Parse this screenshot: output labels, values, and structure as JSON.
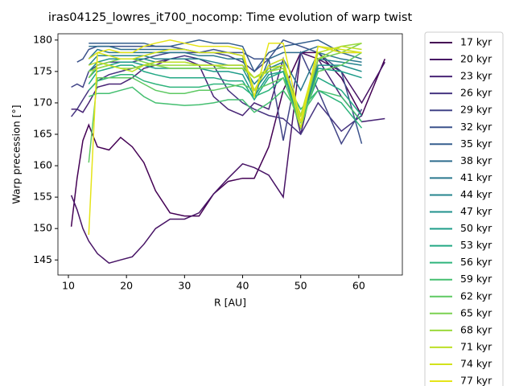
{
  "chart_data": {
    "type": "line",
    "title": "iras04125_lowres_it700_nocomp: Time evolution of warp twist",
    "x_label": "R [AU]",
    "y_label": "Warp precession [°]",
    "xlim": [
      8.2,
      67.5
    ],
    "ylim": [
      142.6,
      181.0
    ],
    "xticks": [
      10,
      20,
      30,
      40,
      50,
      60
    ],
    "yticks": [
      145,
      150,
      155,
      160,
      165,
      170,
      175,
      180
    ],
    "x": [
      10.5,
      11.5,
      12.5,
      13.5,
      15,
      17,
      19,
      21,
      23,
      25,
      27.5,
      30,
      32.5,
      35,
      37.5,
      40,
      42,
      44.5,
      47,
      50,
      53,
      57,
      60.5,
      64.5
    ],
    "series": [
      {
        "name": "17 kyr",
        "color": "#440154",
        "values": [
          150.3,
          158,
          164,
          166.5,
          163,
          162.5,
          164.5,
          163,
          160.5,
          156,
          152.5,
          152,
          152,
          155.5,
          157.5,
          158,
          158,
          163,
          172,
          178,
          178,
          174,
          168,
          177
        ]
      },
      {
        "name": "20 kyr",
        "color": "#471365",
        "values": [
          155.3,
          153,
          150,
          148,
          146,
          144.5,
          145,
          145.5,
          147.5,
          150,
          151.5,
          151.5,
          152.5,
          155.5,
          158,
          160.3,
          159.7,
          158.5,
          155,
          178,
          177,
          175,
          170,
          176.5
        ]
      },
      {
        "name": "23 kyr",
        "color": "#482475",
        "values": [
          169,
          169,
          168.5,
          170,
          172.5,
          173,
          173,
          174,
          175.5,
          176,
          177,
          177,
          176,
          171,
          169,
          168,
          170,
          169,
          177,
          165,
          177,
          171,
          167,
          167.5
        ]
      },
      {
        "name": "26 kyr",
        "color": "#463480",
        "values": [
          167.8,
          169,
          170.5,
          172,
          173.5,
          174.5,
          175,
          175.5,
          176,
          176.5,
          177,
          177.5,
          177,
          176,
          172,
          170,
          169,
          168,
          167.5,
          165,
          170,
          165.5,
          168,
          null
        ]
      },
      {
        "name": "29 kyr",
        "color": "#414487",
        "values": [
          172.5,
          173,
          172.5,
          175,
          176,
          176.5,
          176.5,
          176.5,
          177,
          177.5,
          178,
          178,
          178,
          178,
          177.5,
          176.5,
          175,
          177,
          164,
          178,
          172,
          163.5,
          169,
          null
        ]
      },
      {
        "name": "32 kyr",
        "color": "#3b528b",
        "values": [
          null,
          176.5,
          177,
          178.5,
          179,
          179,
          179,
          179,
          179,
          179,
          179,
          178.5,
          178,
          178.5,
          178,
          178,
          177,
          177,
          180,
          179,
          178,
          175,
          163.5,
          null
        ]
      },
      {
        "name": "35 kyr",
        "color": "#355f8d",
        "values": [
          null,
          null,
          null,
          179.5,
          179.5,
          179.5,
          179.5,
          179.5,
          179.5,
          179,
          179,
          179.5,
          180,
          179.5,
          179.5,
          179,
          175,
          178,
          179,
          179.5,
          180,
          178,
          178,
          null
        ]
      },
      {
        "name": "38 kyr",
        "color": "#2f6c8e",
        "values": [
          null,
          null,
          null,
          179,
          179,
          179,
          178.5,
          178.5,
          178.5,
          178.5,
          178.5,
          178.5,
          178,
          178,
          178,
          177.5,
          171,
          177,
          178,
          178,
          179,
          178,
          177,
          null
        ]
      },
      {
        "name": "41 kyr",
        "color": "#2a788e",
        "values": [
          null,
          null,
          null,
          177,
          178.5,
          178,
          178,
          178,
          178,
          178,
          178,
          178,
          177.5,
          177.5,
          177,
          177,
          172,
          176,
          177,
          172,
          178,
          177,
          176.5,
          null
        ]
      },
      {
        "name": "44 kyr",
        "color": "#25848e",
        "values": [
          null,
          null,
          null,
          176,
          177.5,
          177.5,
          177.5,
          177.5,
          177.5,
          177,
          177,
          177,
          177,
          176.5,
          176,
          176,
          173,
          175.5,
          176.5,
          168,
          177,
          176.5,
          176,
          null
        ]
      },
      {
        "name": "47 kyr",
        "color": "#21918c",
        "values": [
          null,
          null,
          null,
          175,
          176.5,
          177,
          177,
          177,
          177,
          176.5,
          176.5,
          176.5,
          176,
          176,
          175.5,
          175.5,
          172,
          175,
          176,
          167,
          176,
          176,
          175,
          null
        ]
      },
      {
        "name": "50 kyr",
        "color": "#1e9c89",
        "values": [
          null,
          null,
          null,
          174,
          175.5,
          176,
          176.5,
          176.5,
          176,
          175.5,
          175.5,
          175.5,
          175.5,
          175,
          175,
          174.5,
          171,
          174.5,
          175,
          166,
          175.5,
          175,
          174,
          null
        ]
      },
      {
        "name": "53 kyr",
        "color": "#22a884",
        "values": [
          null,
          null,
          null,
          173,
          175,
          175.5,
          176,
          176,
          175,
          174.5,
          174,
          174,
          174,
          174,
          173.5,
          173.5,
          170.5,
          174,
          175,
          167,
          174,
          172,
          168,
          null
        ]
      },
      {
        "name": "56 kyr",
        "color": "#2fb47c",
        "values": [
          null,
          null,
          null,
          172,
          173.5,
          174,
          174.5,
          174.5,
          173.5,
          173,
          172.5,
          172.5,
          172.5,
          173,
          173,
          172.5,
          171,
          172,
          174,
          169,
          172,
          170,
          166,
          null
        ]
      },
      {
        "name": "59 kyr",
        "color": "#44bf70",
        "values": [
          null,
          null,
          null,
          171,
          171.5,
          171.5,
          172,
          172.5,
          171,
          170,
          169.8,
          169.6,
          169.7,
          170,
          170.5,
          170.5,
          168.5,
          170,
          172,
          168,
          172,
          171,
          167,
          null
        ]
      },
      {
        "name": "62 kyr",
        "color": "#5ec962",
        "values": [
          null,
          null,
          null,
          160.5,
          174,
          174,
          174,
          174,
          173,
          172,
          171.5,
          171.5,
          172,
          172,
          172.5,
          173,
          172,
          173,
          174,
          166,
          175,
          176,
          178,
          null
        ]
      },
      {
        "name": "65 kyr",
        "color": "#7ad151",
        "values": [
          null,
          null,
          null,
          174,
          176,
          176.5,
          177,
          177,
          176.5,
          176,
          175.5,
          175.5,
          175.5,
          175.5,
          175.5,
          175.5,
          174,
          175,
          176,
          167,
          177,
          178,
          179.5,
          null
        ]
      },
      {
        "name": "68 kyr",
        "color": "#9bd93c",
        "values": [
          null,
          null,
          null,
          175,
          175.5,
          176,
          175.5,
          175.5,
          176,
          176,
          176,
          176,
          176,
          176,
          175.5,
          175.5,
          174,
          175,
          175.5,
          168,
          177,
          179,
          179.5,
          null
        ]
      },
      {
        "name": "71 kyr",
        "color": "#bddf26",
        "values": [
          null,
          null,
          null,
          176,
          176.5,
          176,
          175.5,
          175,
          176,
          176.5,
          176.5,
          176.5,
          176,
          176,
          176,
          176,
          174,
          175.5,
          176,
          168,
          178,
          179,
          178.5,
          null
        ]
      },
      {
        "name": "74 kyr",
        "color": "#d2e21b",
        "values": [
          null,
          null,
          null,
          177,
          178,
          177.5,
          177,
          177,
          177.5,
          178,
          178.5,
          178.5,
          178,
          178,
          178,
          177.5,
          172,
          176,
          177,
          166,
          179,
          178.5,
          178,
          null
        ]
      },
      {
        "name": "77 kyr",
        "color": "#e5e419",
        "values": [
          null,
          null,
          null,
          149,
          178,
          178.5,
          178,
          178,
          179,
          179.5,
          180,
          179.5,
          179,
          179,
          179,
          178.5,
          171,
          179.5,
          179.5,
          167,
          179,
          178,
          178,
          null
        ]
      }
    ]
  }
}
